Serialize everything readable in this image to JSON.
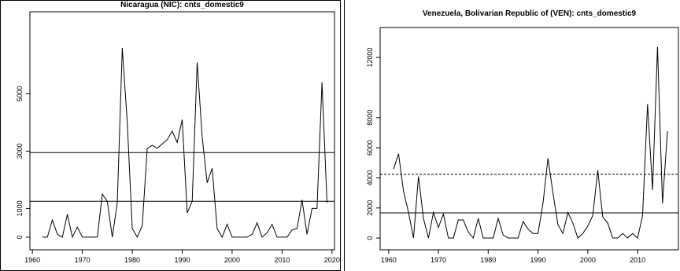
{
  "chart_data": [
    {
      "type": "line",
      "title": "Nicaragua (NIC): cnts_domestic9",
      "x": [
        1962,
        1963,
        1964,
        1965,
        1966,
        1967,
        1968,
        1969,
        1970,
        1971,
        1972,
        1973,
        1974,
        1975,
        1976,
        1977,
        1978,
        1979,
        1980,
        1981,
        1982,
        1983,
        1984,
        1985,
        1986,
        1987,
        1988,
        1989,
        1990,
        1991,
        1992,
        1993,
        1994,
        1995,
        1996,
        1997,
        1998,
        1999,
        2000,
        2001,
        2002,
        2003,
        2004,
        2005,
        2006,
        2007,
        2008,
        2009,
        2010,
        2011,
        2012,
        2013,
        2014,
        2015,
        2016,
        2017,
        2018,
        2019
      ],
      "series": [
        {
          "color": "#000000",
          "values": [
            0,
            0,
            600,
            100,
            0,
            800,
            0,
            350,
            0,
            0,
            0,
            0,
            1500,
            1250,
            0,
            1200,
            6600,
            4000,
            300,
            0,
            400,
            3100,
            3200,
            3100,
            3250,
            3400,
            3700,
            3300,
            4100,
            850,
            1250,
            6100,
            3500,
            1900,
            2400,
            300,
            0,
            450,
            0,
            0,
            0,
            0,
            100,
            500,
            0,
            150,
            450,
            0,
            0,
            0,
            250,
            300,
            1300,
            100,
            1000,
            1000,
            5400,
            1200
          ]
        }
      ],
      "hlines": [
        {
          "value": 2950,
          "style": "solid"
        },
        {
          "value": 1250,
          "style": "solid"
        }
      ],
      "xlim": [
        1959.5,
        2020.5
      ],
      "xticks": [
        1960,
        1970,
        1980,
        1990,
        2000,
        2010,
        2020
      ],
      "ylim": [
        -440,
        7860
      ],
      "yticks": [
        0,
        1000,
        3000,
        5000
      ]
    },
    {
      "type": "line",
      "title": "Venezuela, Bolivarian Republic of (VEN): cnts_domestic9",
      "x": [
        1961,
        1962,
        1963,
        1964,
        1965,
        1966,
        1967,
        1968,
        1969,
        1970,
        1971,
        1972,
        1973,
        1974,
        1975,
        1976,
        1977,
        1978,
        1979,
        1980,
        1981,
        1982,
        1983,
        1984,
        1985,
        1986,
        1987,
        1988,
        1989,
        1990,
        1991,
        1992,
        1993,
        1994,
        1995,
        1996,
        1997,
        1998,
        1999,
        2000,
        2001,
        2002,
        2003,
        2004,
        2005,
        2006,
        2007,
        2008,
        2009,
        2010,
        2011,
        2012,
        2013,
        2014,
        2015,
        2016
      ],
      "series": [
        {
          "color": "#000000",
          "values": [
            4600,
            5600,
            3100,
            1700,
            0,
            4100,
            1300,
            0,
            1700,
            700,
            1600,
            0,
            0,
            1200,
            1200,
            400,
            0,
            1300,
            0,
            0,
            0,
            1300,
            200,
            0,
            0,
            0,
            1100,
            600,
            300,
            300,
            2300,
            5300,
            3000,
            900,
            300,
            1700,
            1000,
            0,
            300,
            800,
            1500,
            4500,
            1400,
            1000,
            0,
            0,
            300,
            0,
            300,
            0,
            1500,
            8900,
            3200,
            12700,
            2300,
            7100
          ]
        }
      ],
      "hlines": [
        {
          "value": 4230,
          "style": "dashed"
        },
        {
          "value": 1670,
          "style": "solid"
        }
      ],
      "xlim": [
        1958.3,
        2018.2
      ],
      "xticks": [
        1960,
        1970,
        1980,
        1990,
        2000,
        2010
      ],
      "ylim": [
        -780,
        13990
      ],
      "yticks": [
        0,
        2000,
        4000,
        6000,
        8000,
        12000
      ]
    }
  ]
}
